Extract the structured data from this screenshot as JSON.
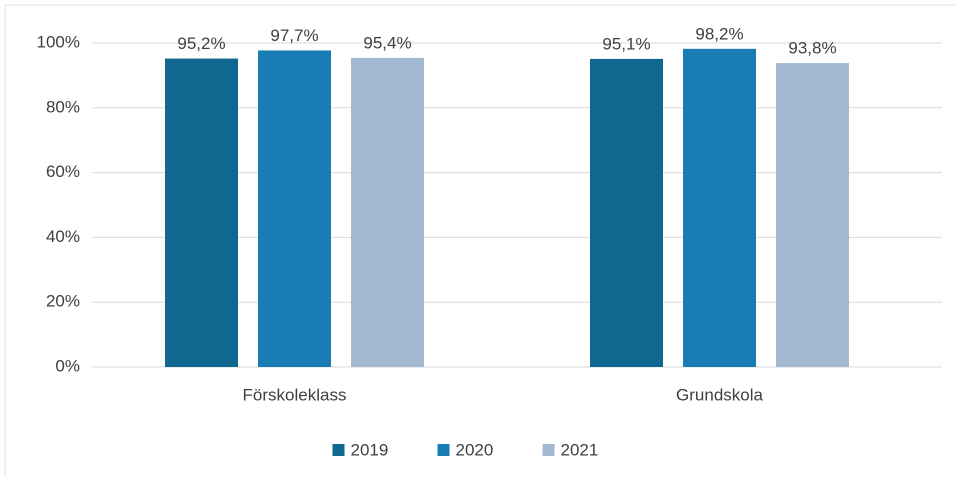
{
  "chart_data": {
    "type": "bar",
    "categories": [
      "Förskoleklass",
      "Grundskola"
    ],
    "series": [
      {
        "name": "2019",
        "color": "#10678f",
        "values": [
          95.2,
          95.1
        ],
        "value_labels": [
          "95,2%",
          "95,1%"
        ]
      },
      {
        "name": "2020",
        "color": "#197db3",
        "values": [
          97.7,
          98.2
        ],
        "value_labels": [
          "97,7%",
          "98,2%"
        ]
      },
      {
        "name": "2021",
        "color": "#a3b9d2",
        "values": [
          95.4,
          93.8
        ],
        "value_labels": [
          "95,4%",
          "93,8%"
        ]
      }
    ],
    "ylim": [
      0,
      100
    ],
    "yticks": [
      {
        "value": 0,
        "label": "0%"
      },
      {
        "value": 20,
        "label": "20%"
      },
      {
        "value": 40,
        "label": "40%"
      },
      {
        "value": 60,
        "label": "60%"
      },
      {
        "value": 80,
        "label": "80%"
      },
      {
        "value": 100,
        "label": "100%"
      }
    ],
    "grid": true,
    "legend": "bottom"
  }
}
